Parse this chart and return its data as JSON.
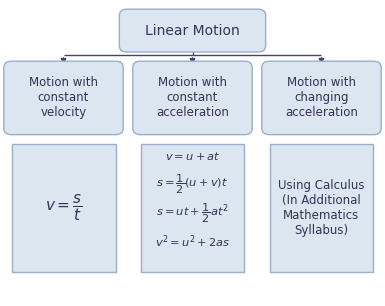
{
  "title": "Linear Motion",
  "background_color": "#ffffff",
  "box_fill_color": "#dce6f1",
  "box_edge_color": "#9aafcc",
  "text_color": "#333355",
  "arrow_color": "#444466",
  "categories": [
    "Motion with\nconstant\nvelocity",
    "Motion with\nconstant\nacceleration",
    "Motion with\nchanging\nacceleration"
  ],
  "formulas_right": "Using Calculus\n(In Additional\nMathematics\nSyllabus)",
  "font_size_title": 10,
  "font_size_cat": 8.5,
  "font_size_formula": 8.5,
  "font_size_right": 8.5
}
